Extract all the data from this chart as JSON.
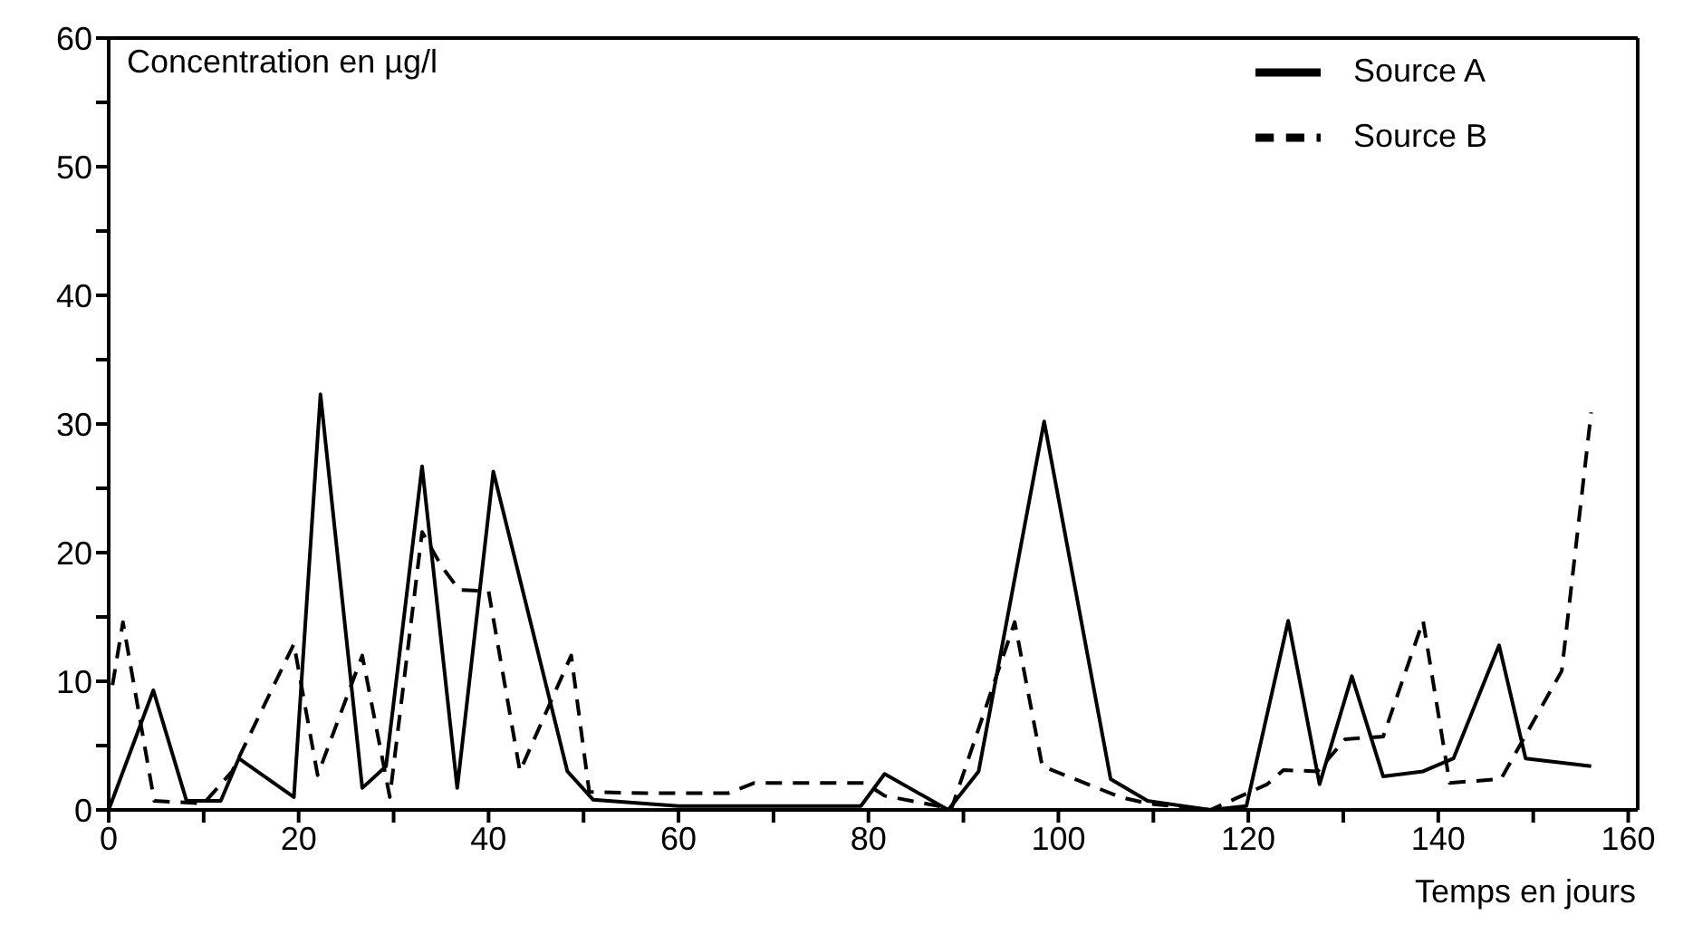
{
  "chart_data": {
    "type": "line",
    "ylabel": "Concentration en µg/l",
    "xlabel": "Temps en jours",
    "xlim": [
      0,
      161
    ],
    "ylim": [
      0,
      60
    ],
    "xticks": [
      0,
      {
        "value": 10,
        "label": null
      },
      20,
      {
        "value": 30,
        "label": null
      },
      40,
      {
        "value": 50,
        "label": null
      },
      60,
      {
        "value": 70,
        "label": null
      },
      80,
      {
        "value": 90,
        "label": null
      },
      100,
      {
        "value": 110,
        "label": null
      },
      120,
      {
        "value": 130,
        "label": null
      },
      140,
      {
        "value": 150,
        "label": null
      },
      160
    ],
    "yticks": [
      0,
      {
        "value": 5,
        "label": null
      },
      10,
      {
        "value": 15,
        "label": null
      },
      20,
      {
        "value": 25,
        "label": null
      },
      30,
      {
        "value": 35,
        "label": null
      },
      40,
      {
        "value": 45,
        "label": null
      },
      50,
      {
        "value": 55,
        "label": null
      },
      60
    ],
    "legend": "top right",
    "marker": "none",
    "series": [
      {
        "name": "Source A",
        "color": "#000000",
        "line_style": "solid",
        "x": [
          0,
          4.7,
          8.2,
          11.8,
          13.7,
          19.5,
          22.3,
          26.7,
          29.2,
          33,
          36.7,
          40.5,
          48.3,
          51,
          60,
          79.2,
          81.7,
          88.4,
          91.6,
          98.5,
          105.5,
          109.4,
          116,
          119.8,
          124.2,
          127.5,
          130.9,
          134.2,
          138.4,
          141.6,
          146.4,
          149.2,
          156.1
        ],
        "values": [
          0,
          9.3,
          0.7,
          0.7,
          4,
          1,
          32.3,
          1.7,
          3.4,
          26.7,
          1.7,
          26.3,
          3,
          0.8,
          0.3,
          0.3,
          2.8,
          0,
          3,
          30.2,
          2.4,
          0.7,
          0,
          0.3,
          14.7,
          2,
          10.4,
          2.6,
          3,
          4,
          12.8,
          4,
          3.4
        ]
      },
      {
        "name": "Source B",
        "color": "#000000",
        "line_style": "dashed",
        "x": [
          0.4,
          1.5,
          4.8,
          10,
          13,
          19.5,
          22,
          26.7,
          29.6,
          33,
          35,
          36.9,
          40,
          43.3,
          48.7,
          50.6,
          56.6,
          65.2,
          68,
          79.6,
          81.7,
          87.4,
          88.7,
          95.4,
          98.3,
          106.5,
          109.4,
          116,
          122,
          123.7,
          127.3,
          130.2,
          134.2,
          138.4,
          141.2,
          146.6,
          153,
          156.1
        ],
        "values": [
          9.7,
          14.6,
          0.7,
          0.5,
          3,
          12.9,
          2.7,
          12,
          1,
          21.6,
          19,
          17.1,
          17,
          3,
          12,
          1.4,
          1.3,
          1.3,
          2.1,
          2.1,
          1.1,
          0.3,
          0,
          14.6,
          3.4,
          1,
          0.5,
          0,
          2,
          3.1,
          3,
          5.5,
          5.7,
          14.7,
          2.1,
          2.4,
          10.8,
          30.9
        ]
      }
    ]
  }
}
